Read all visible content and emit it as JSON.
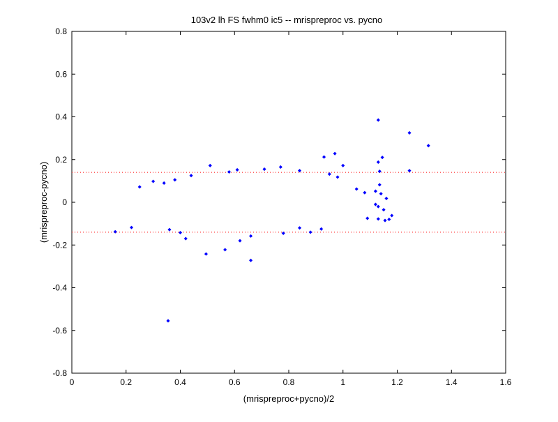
{
  "chart_data": {
    "type": "scatter",
    "title": "103v2 lh FS fwhm0 ic5 -- mrispreproc vs. pycno",
    "xlabel": "(mrispreproc+pycno)/2",
    "ylabel": "(mrispreproc-pycno)",
    "xlim": [
      0,
      1.6
    ],
    "ylim": [
      -0.8,
      0.8
    ],
    "xticks": [
      0,
      0.2,
      0.4,
      0.6,
      0.8,
      1,
      1.2,
      1.4,
      1.6
    ],
    "yticks": [
      -0.8,
      -0.6,
      -0.4,
      -0.2,
      0,
      0.2,
      0.4,
      0.6,
      0.8
    ],
    "xtick_labels": [
      "0",
      "0.2",
      "0.4",
      "0.6",
      "0.8",
      "1",
      "1.2",
      "1.4",
      "1.6"
    ],
    "ytick_labels": [
      "-0.8",
      "-0.6",
      "-0.4",
      "-0.2",
      "0",
      "0.2",
      "0.4",
      "0.6",
      "0.8"
    ],
    "grid": false,
    "marker_color": "#0000ff",
    "reference_line_color": "#ff0000",
    "reference_lines": [
      {
        "y": 0.14,
        "style": "dotted"
      },
      {
        "y": -0.14,
        "style": "dotted"
      }
    ],
    "series": [
      {
        "points": [
          [
            1.13,
            0.385
          ],
          [
            1.245,
            0.325
          ],
          [
            1.315,
            0.265
          ],
          [
            1.245,
            0.148
          ],
          [
            1.145,
            0.21
          ],
          [
            1.13,
            0.188
          ],
          [
            1.135,
            0.145
          ],
          [
            0.97,
            0.228
          ],
          [
            0.93,
            0.212
          ],
          [
            0.51,
            0.172
          ],
          [
            0.355,
            -0.555
          ],
          [
            0.66,
            -0.272
          ],
          [
            0.495,
            -0.242
          ],
          [
            0.565,
            -0.222
          ],
          [
            0.16,
            -0.138
          ],
          [
            1.09,
            -0.075
          ],
          [
            1.13,
            -0.078
          ],
          [
            1.155,
            -0.085
          ],
          [
            1.17,
            -0.08
          ],
          [
            1.18,
            -0.062
          ],
          [
            1.15,
            -0.035
          ],
          [
            1.12,
            -0.01
          ],
          [
            1.13,
            -0.02
          ],
          [
            1.14,
            0.04
          ],
          [
            1.135,
            0.082
          ],
          [
            1.12,
            0.052
          ],
          [
            1.16,
            0.018
          ],
          [
            1.0,
            0.172
          ],
          [
            1.05,
            0.062
          ],
          [
            1.08,
            0.045
          ],
          [
            0.92,
            -0.125
          ],
          [
            0.88,
            -0.14
          ],
          [
            0.84,
            -0.12
          ],
          [
            0.78,
            -0.145
          ],
          [
            0.62,
            -0.18
          ],
          [
            0.66,
            -0.158
          ],
          [
            0.42,
            -0.17
          ],
          [
            0.4,
            -0.142
          ],
          [
            0.36,
            -0.128
          ],
          [
            0.22,
            -0.118
          ],
          [
            0.25,
            0.072
          ],
          [
            0.3,
            0.098
          ],
          [
            0.34,
            0.09
          ],
          [
            0.38,
            0.105
          ],
          [
            0.44,
            0.125
          ],
          [
            0.58,
            0.142
          ],
          [
            0.61,
            0.152
          ],
          [
            0.71,
            0.155
          ],
          [
            0.77,
            0.165
          ],
          [
            0.84,
            0.148
          ],
          [
            0.95,
            0.132
          ],
          [
            0.98,
            0.118
          ]
        ]
      }
    ]
  }
}
